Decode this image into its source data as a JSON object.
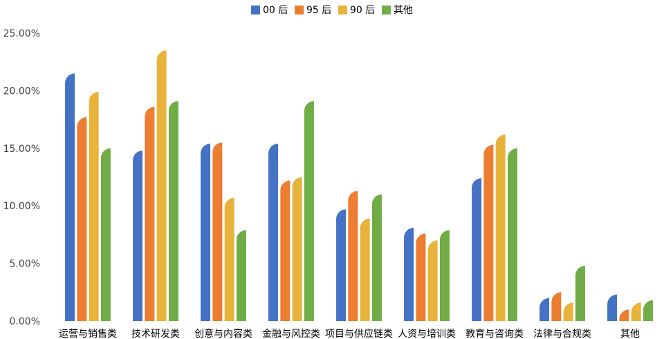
{
  "chart_data": {
    "type": "bar",
    "title": "",
    "xlabel": "",
    "ylabel": "",
    "ylim": [
      0,
      0.25
    ],
    "y_ticks": [
      "0.00%",
      "5.00%",
      "10.00%",
      "15.00%",
      "20.00%",
      "25.00%"
    ],
    "grid": false,
    "legend_position": "top-center",
    "categories": [
      "运营与销售类",
      "技术研发类",
      "创意与内容类",
      "金融与风控类",
      "项目与供应链类",
      "人资与培训类",
      "教育与咨询类",
      "法律与合规类",
      "其他"
    ],
    "series": [
      {
        "name": "00 后",
        "color": "#4472C4",
        "values": [
          0.215,
          0.148,
          0.154,
          0.154,
          0.097,
          0.081,
          0.124,
          0.02,
          0.023
        ]
      },
      {
        "name": "95 后",
        "color": "#ED7D31",
        "values": [
          0.177,
          0.186,
          0.155,
          0.122,
          0.113,
          0.076,
          0.153,
          0.025,
          0.01
        ]
      },
      {
        "name": "90 后",
        "color": "#E8B33A",
        "values": [
          0.199,
          0.235,
          0.107,
          0.125,
          0.089,
          0.07,
          0.162,
          0.016,
          0.016
        ]
      },
      {
        "name": "其他",
        "color": "#70AD47",
        "values": [
          0.15,
          0.191,
          0.079,
          0.191,
          0.11,
          0.079,
          0.15,
          0.048,
          0.018
        ]
      }
    ]
  }
}
